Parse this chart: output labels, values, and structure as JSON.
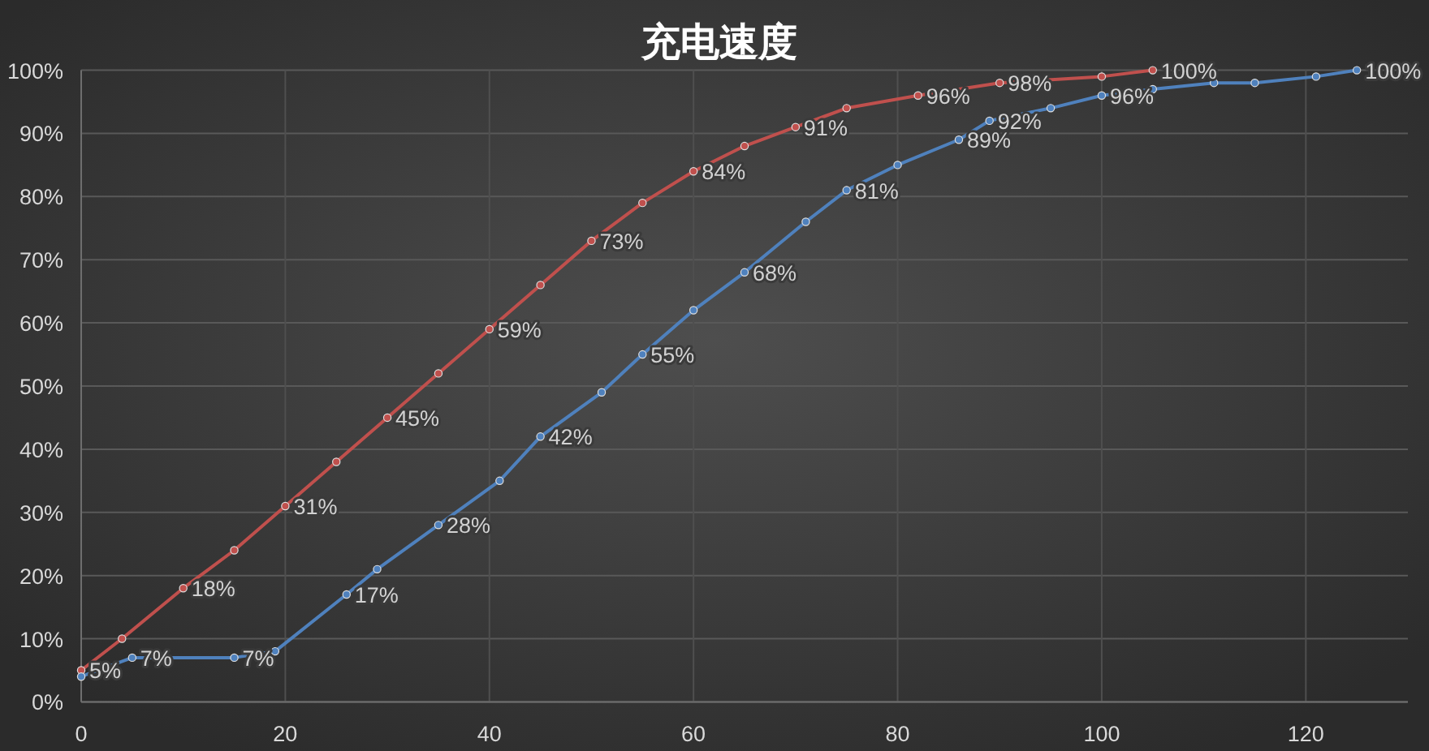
{
  "chart_data": {
    "type": "line",
    "title": "充电速度",
    "xlim": [
      0,
      130
    ],
    "xticks": [
      0,
      20,
      40,
      60,
      80,
      100,
      120
    ],
    "ylim": [
      0,
      100
    ],
    "yticks": [
      {
        "value": 0,
        "label": "0%"
      },
      {
        "value": 10,
        "label": "10%"
      },
      {
        "value": 20,
        "label": "20%"
      },
      {
        "value": 30,
        "label": "30%"
      },
      {
        "value": 40,
        "label": "40%"
      },
      {
        "value": 50,
        "label": "50%"
      },
      {
        "value": 60,
        "label": "60%"
      },
      {
        "value": 70,
        "label": "70%"
      },
      {
        "value": 80,
        "label": "80%"
      },
      {
        "value": 90,
        "label": "90%"
      },
      {
        "value": 100,
        "label": "100%"
      }
    ],
    "grid": true,
    "marker": "circle",
    "series": [
      {
        "color": "#c0504d",
        "x": [
          0,
          4,
          10,
          15,
          20,
          25,
          30,
          35,
          40,
          45,
          50,
          55,
          60,
          65,
          70,
          75,
          82,
          90,
          100,
          105
        ],
        "values": [
          5,
          10,
          18,
          24,
          31,
          38,
          45,
          52,
          59,
          66,
          73,
          79,
          84,
          88,
          91,
          94,
          96,
          98,
          99,
          100
        ],
        "value_labels": [
          "5%",
          null,
          "18%",
          null,
          "31%",
          null,
          "45%",
          null,
          "59%",
          null,
          "73%",
          null,
          "84%",
          null,
          "91%",
          null,
          "96%",
          "98%",
          null,
          "100%"
        ]
      },
      {
        "color": "#4f81bd",
        "x": [
          0,
          5,
          15,
          19,
          26,
          29,
          35,
          41,
          45,
          51,
          55,
          60,
          65,
          71,
          75,
          80,
          86,
          89,
          95,
          100,
          105,
          111,
          115,
          121,
          125
        ],
        "values": [
          4,
          7,
          7,
          8,
          17,
          21,
          28,
          35,
          42,
          49,
          55,
          62,
          68,
          76,
          81,
          85,
          89,
          92,
          94,
          96,
          97,
          98,
          98,
          99,
          100
        ],
        "value_labels": [
          null,
          "7%",
          "7%",
          null,
          "17%",
          null,
          "28%",
          null,
          "42%",
          null,
          "55%",
          null,
          "68%",
          null,
          "81%",
          null,
          "89%",
          "92%",
          null,
          "96%",
          null,
          null,
          null,
          null,
          "100%"
        ]
      }
    ]
  }
}
